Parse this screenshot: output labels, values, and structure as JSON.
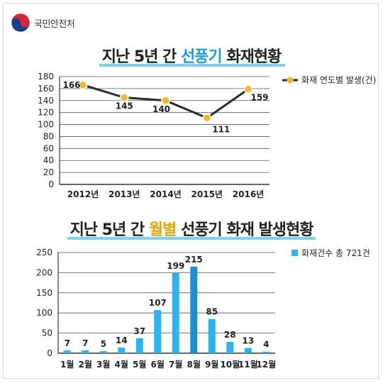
{
  "brand": {
    "name": "국민안전처"
  },
  "charts_meta": {
    "title1_prefix": "지난 5년 간 ",
    "title1_highlight": "선풍기",
    "title1_suffix": " 화재현황",
    "title2_prefix": "지난 5년 간 ",
    "title2_highlight": "월별",
    "title2_suffix": " 선풍기 화재 발생현황"
  },
  "colors": {
    "line": "#2b2b2b",
    "marker": "#f4b82c",
    "bar": "#2bb4ee",
    "bar_highlight": "#1b8fd0",
    "highlight_label": "#1a9bd9",
    "title_accent_blue": "#1a9bd9",
    "title_accent_orange": "#e8a60a"
  },
  "chart_data": [
    {
      "type": "line",
      "title": "지난 5년 간 선풍기 화재현황",
      "categories": [
        "2012년",
        "2013년",
        "2014년",
        "2015년",
        "2016년"
      ],
      "series": [
        {
          "name": "화재 연도별 발생(건)",
          "values": [
            166,
            145,
            140,
            111,
            159
          ]
        }
      ],
      "ylim": [
        0,
        180
      ],
      "yticks": [
        0,
        20,
        40,
        60,
        80,
        100,
        120,
        140,
        160,
        180
      ],
      "grid": true,
      "legend": "top-right"
    },
    {
      "type": "bar",
      "title": "지난 5년 간 월별 선풍기 화재 발생현황",
      "categories": [
        "1월",
        "2월",
        "3월",
        "4월",
        "5월",
        "6월",
        "7월",
        "8월",
        "9월",
        "10월",
        "11월",
        "12월"
      ],
      "series": [
        {
          "name": "화재건수 총 721건",
          "values": [
            7,
            7,
            5,
            14,
            37,
            107,
            199,
            215,
            85,
            28,
            13,
            4
          ]
        }
      ],
      "highlight": "8월",
      "ylim": [
        0,
        250
      ],
      "yticks": [
        0,
        50,
        100,
        150,
        200,
        250
      ],
      "grid": true,
      "legend": "top-right"
    }
  ]
}
